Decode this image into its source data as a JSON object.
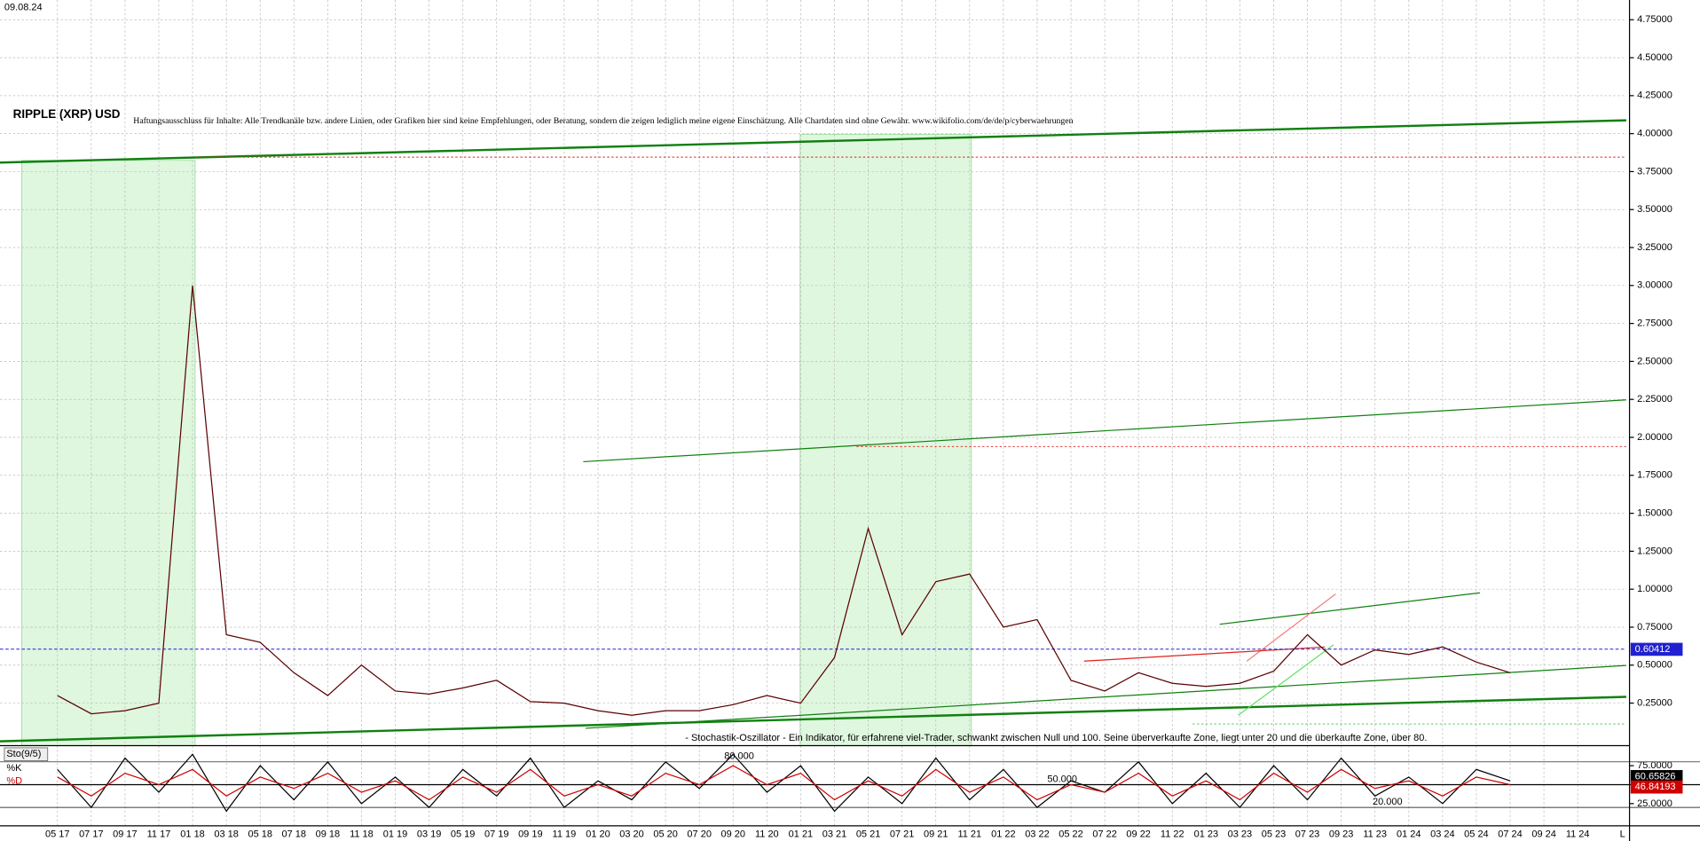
{
  "chart_data": [
    {
      "type": "line",
      "date": "09.08.24",
      "title": "RIPPLE (XRP) USD",
      "subtitle": "Haftungsausschluss für Inhalte: Alle Trendkanäle bzw. andere Linien, oder Grafiken hier sind keine Empfehlungen, oder Beratung, sondern die zeigen lediglich meine eigene Einschätzung. Alle Chartdaten sind ohne Gewähr. www.wikifolio.com/de/de/p/cyberwaehrungen",
      "annotation": "- Stochastik-Oszillator - Ein Indikator, für erfahrene viel-Trader, schwankt zwischen Null und 100. Seine überverkaufte Zone, liegt unter 20 und die überkaufte Zone, über 80.",
      "categories": [
        "05 17",
        "07 17",
        "09 17",
        "11 17",
        "01 18",
        "03 18",
        "05 18",
        "07 18",
        "09 18",
        "11 18",
        "01 19",
        "03 19",
        "05 19",
        "07 19",
        "09 19",
        "11 19",
        "01 20",
        "03 20",
        "05 20",
        "07 20",
        "09 20",
        "11 20",
        "01 21",
        "03 21",
        "05 21",
        "07 21",
        "09 21",
        "11 21",
        "01 22",
        "03 22",
        "05 22",
        "07 22",
        "09 22",
        "11 22",
        "01 23",
        "03 23",
        "05 23",
        "07 23",
        "09 23",
        "11 23",
        "01 24",
        "03 24",
        "05 24",
        "07 24",
        "09 24",
        "11 24"
      ],
      "series": [
        {
          "name": "XRP",
          "color": "#5a0000",
          "values": [
            0.3,
            0.18,
            0.2,
            0.25,
            3.0,
            0.7,
            0.65,
            0.45,
            0.3,
            0.5,
            0.33,
            0.31,
            0.35,
            0.4,
            0.26,
            0.25,
            0.2,
            0.17,
            0.2,
            0.2,
            0.24,
            0.3,
            0.25,
            0.55,
            1.4,
            0.7,
            1.05,
            1.1,
            0.75,
            0.8,
            0.4,
            0.33,
            0.45,
            0.38,
            0.36,
            0.38,
            0.46,
            0.7,
            0.5,
            0.6,
            0.57,
            0.62,
            0.52,
            0.45,
            null,
            null
          ],
          "last_value": 0.60412
        }
      ],
      "ylim": [
        -0.03,
        4.88
      ],
      "yticks": [
        {
          "value": 0.25,
          "label": "0.25000"
        },
        {
          "value": 0.5,
          "label": "0.50000"
        },
        {
          "value": 0.75,
          "label": "0.75000"
        },
        {
          "value": 1,
          "label": "1.00000"
        },
        {
          "value": 1.25,
          "label": "1.25000"
        },
        {
          "value": 1.5,
          "label": "1.50000"
        },
        {
          "value": 1.75,
          "label": "1.75000"
        },
        {
          "value": 2,
          "label": "2.00000"
        },
        {
          "value": 2.25,
          "label": "2.25000"
        },
        {
          "value": 2.5,
          "label": "2.50000"
        },
        {
          "value": 2.75,
          "label": "2.75000"
        },
        {
          "value": 3,
          "label": "3.00000"
        },
        {
          "value": 3.25,
          "label": "3.25000"
        },
        {
          "value": 3.5,
          "label": "3.50000"
        },
        {
          "value": 3.75,
          "label": "3.75000"
        },
        {
          "value": 4,
          "label": "4.00000"
        },
        {
          "value": 4.25,
          "label": "4.25000"
        },
        {
          "value": 4.5,
          "label": "4.50000"
        },
        {
          "value": 4.75,
          "label": "4.75000"
        }
      ],
      "grid": true,
      "corner_label": "L"
    },
    {
      "type": "line",
      "title": "Sto(9/5)",
      "series": [
        {
          "name": "%K",
          "color": "#000000",
          "last_value": 60.65826,
          "values": [
            70,
            20,
            85,
            40,
            90,
            15,
            75,
            30,
            80,
            25,
            60,
            20,
            70,
            35,
            85,
            20,
            55,
            30,
            80,
            45,
            90,
            40,
            75,
            15,
            60,
            25,
            85,
            30,
            70,
            20,
            55,
            40,
            80,
            25,
            65,
            20,
            75,
            30,
            85,
            35,
            60,
            25,
            70,
            55,
            null,
            null
          ]
        },
        {
          "name": "%D",
          "color": "#d00000",
          "last_value": 46.84193,
          "values": [
            60,
            35,
            65,
            50,
            70,
            35,
            60,
            45,
            65,
            40,
            55,
            30,
            60,
            40,
            70,
            35,
            50,
            35,
            65,
            50,
            75,
            50,
            65,
            30,
            55,
            35,
            70,
            40,
            60,
            30,
            50,
            40,
            65,
            35,
            55,
            30,
            65,
            40,
            70,
            45,
            55,
            35,
            60,
            50,
            null,
            null
          ]
        }
      ],
      "ylim": [
        0,
        100
      ],
      "yticks": [
        {
          "value": 75,
          "label": "75.0000"
        },
        {
          "value": 25,
          "label": "25.0000"
        }
      ],
      "levels": [
        {
          "value": 80,
          "label": "80.000"
        },
        {
          "value": 50,
          "label": "50.000"
        },
        {
          "value": 20,
          "label": "20.000"
        }
      ]
    }
  ]
}
